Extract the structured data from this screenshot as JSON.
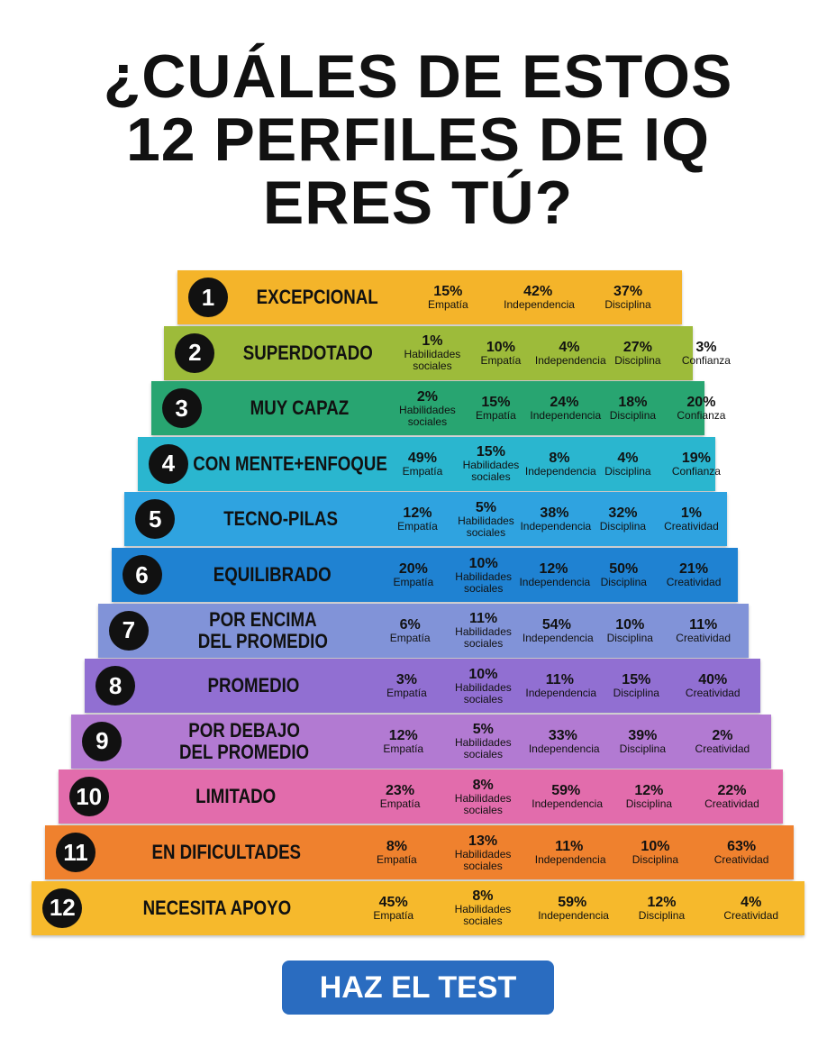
{
  "title": [
    "¿CUÁLES DE ESTOS",
    "12 PERFILES DE IQ",
    "ERES TÚ?"
  ],
  "levels": [
    {
      "number": "1",
      "name": [
        "EXCEPCIONAL"
      ],
      "color": "#f4b42a",
      "stats": [
        {
          "value": "15%",
          "label": "Empatía"
        },
        {
          "value": "42%",
          "label": "Independencia"
        },
        {
          "value": "37%",
          "label": "Disciplina"
        }
      ]
    },
    {
      "number": "2",
      "name": [
        "SUPERDOTADO"
      ],
      "color": "#9dbb3a",
      "stats": [
        {
          "value": "1%",
          "label": "Habilidades sociales"
        },
        {
          "value": "10%",
          "label": "Empatía"
        },
        {
          "value": "4%",
          "label": "Independencia"
        },
        {
          "value": "27%",
          "label": "Disciplina"
        },
        {
          "value": "3%",
          "label": "Confianza"
        }
      ]
    },
    {
      "number": "3",
      "name": [
        "MUY CAPAZ"
      ],
      "color": "#28a571",
      "stats": [
        {
          "value": "2%",
          "label": "Habilidades sociales"
        },
        {
          "value": "15%",
          "label": "Empatía"
        },
        {
          "value": "24%",
          "label": "Independencia"
        },
        {
          "value": "18%",
          "label": "Disciplina"
        },
        {
          "value": "20%",
          "label": "Confianza"
        }
      ]
    },
    {
      "number": "4",
      "name": [
        "CON MENTE+ENFOQUE"
      ],
      "color": "#2ab6cf",
      "stats": [
        {
          "value": "49%",
          "label": "Empatía"
        },
        {
          "value": "15%",
          "label": "Habilidades sociales"
        },
        {
          "value": "8%",
          "label": "Independencia"
        },
        {
          "value": "4%",
          "label": "Disciplina"
        },
        {
          "value": "19%",
          "label": "Confianza"
        }
      ]
    },
    {
      "number": "5",
      "name": [
        "TECNO-PILAS"
      ],
      "color": "#2fa3e0",
      "stats": [
        {
          "value": "12%",
          "label": "Empatía"
        },
        {
          "value": "5%",
          "label": "Habilidades sociales"
        },
        {
          "value": "38%",
          "label": "Independencia"
        },
        {
          "value": "32%",
          "label": "Disciplina"
        },
        {
          "value": "1%",
          "label": "Creatividad"
        }
      ]
    },
    {
      "number": "6",
      "name": [
        "EQUILIBRADO"
      ],
      "color": "#1f82d2",
      "stats": [
        {
          "value": "20%",
          "label": "Empatía"
        },
        {
          "value": "10%",
          "label": "Habilidades sociales"
        },
        {
          "value": "12%",
          "label": "Independencia"
        },
        {
          "value": "50%",
          "label": "Disciplina"
        },
        {
          "value": "21%",
          "label": "Creatividad"
        }
      ]
    },
    {
      "number": "7",
      "name": [
        "POR ENCIMA",
        "DEL PROMEDIO"
      ],
      "color": "#8193d8",
      "stats": [
        {
          "value": "6%",
          "label": "Empatía"
        },
        {
          "value": "11%",
          "label": "Habilidades sociales"
        },
        {
          "value": "54%",
          "label": "Independencia"
        },
        {
          "value": "10%",
          "label": "Disciplina"
        },
        {
          "value": "11%",
          "label": "Creatividad"
        }
      ]
    },
    {
      "number": "8",
      "name": [
        "PROMEDIO"
      ],
      "color": "#916fd2",
      "stats": [
        {
          "value": "3%",
          "label": "Empatía"
        },
        {
          "value": "10%",
          "label": "Habilidades sociales"
        },
        {
          "value": "11%",
          "label": "Independencia"
        },
        {
          "value": "15%",
          "label": "Disciplina"
        },
        {
          "value": "40%",
          "label": "Creatividad"
        }
      ]
    },
    {
      "number": "9",
      "name": [
        "POR DEBAJO",
        "DEL PROMEDIO"
      ],
      "color": "#b27ad2",
      "stats": [
        {
          "value": "12%",
          "label": "Empatía"
        },
        {
          "value": "5%",
          "label": "Habilidades sociales"
        },
        {
          "value": "33%",
          "label": "Independencia"
        },
        {
          "value": "39%",
          "label": "Disciplina"
        },
        {
          "value": "2%",
          "label": "Creatividad"
        }
      ]
    },
    {
      "number": "10",
      "name": [
        "LIMITADO"
      ],
      "color": "#e26cac",
      "stats": [
        {
          "value": "23%",
          "label": "Empatía"
        },
        {
          "value": "8%",
          "label": "Habilidades sociales"
        },
        {
          "value": "59%",
          "label": "Independencia"
        },
        {
          "value": "12%",
          "label": "Disciplina"
        },
        {
          "value": "22%",
          "label": "Creatividad"
        }
      ]
    },
    {
      "number": "11",
      "name": [
        "EN DIFICULTADES"
      ],
      "color": "#ef812e",
      "stats": [
        {
          "value": "8%",
          "label": "Empatía"
        },
        {
          "value": "13%",
          "label": "Habilidades sociales"
        },
        {
          "value": "11%",
          "label": "Independencia"
        },
        {
          "value": "10%",
          "label": "Disciplina"
        },
        {
          "value": "63%",
          "label": "Creatividad"
        }
      ]
    },
    {
      "number": "12",
      "name": [
        "NECESITA APOYO"
      ],
      "color": "#f6b92c",
      "stats": [
        {
          "value": "45%",
          "label": "Empatía"
        },
        {
          "value": "8%",
          "label": "Habilidades sociales"
        },
        {
          "value": "59%",
          "label": "Independencia"
        },
        {
          "value": "12%",
          "label": "Disciplina"
        },
        {
          "value": "4%",
          "label": "Creatividad"
        }
      ]
    }
  ],
  "button": "HAZ EL TEST"
}
